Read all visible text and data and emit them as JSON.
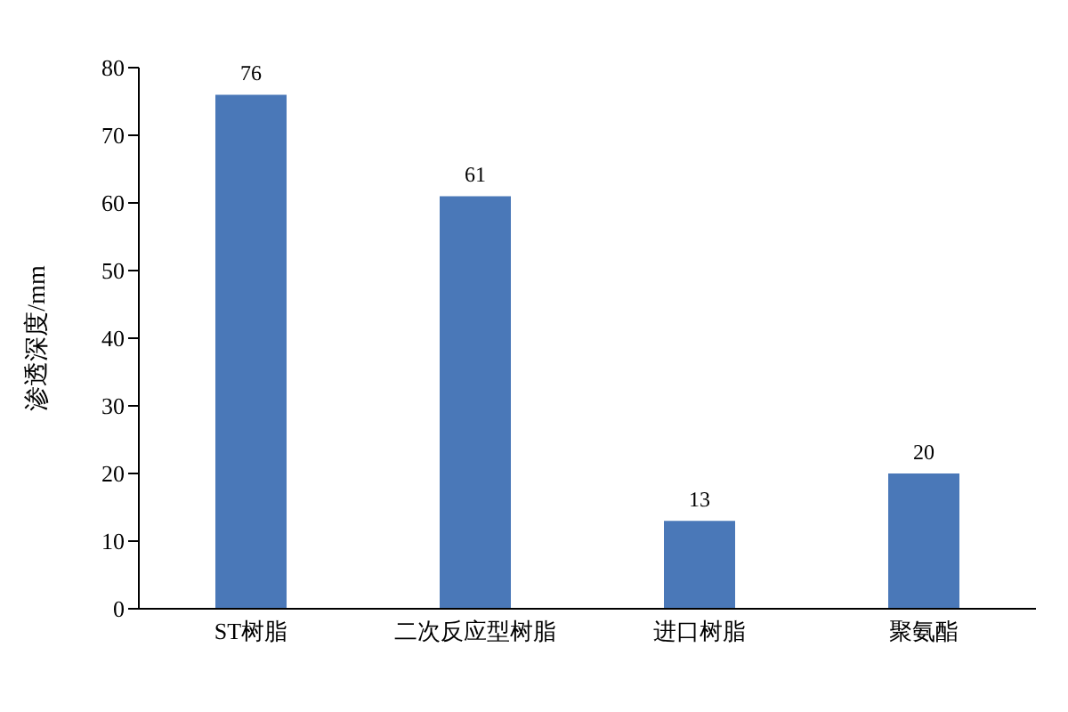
{
  "chart_data": {
    "type": "bar",
    "ylabel": "渗透深度/mm",
    "categories": [
      "ST树脂",
      "二次反应型树脂",
      "进口树脂",
      "聚氨酯"
    ],
    "values": [
      76,
      61,
      13,
      20
    ],
    "color": "#4a78b8",
    "ylim": [
      0,
      80
    ],
    "yticks": [
      0,
      10,
      20,
      30,
      40,
      50,
      60,
      70,
      80
    ],
    "grid": false,
    "data_labels": true,
    "legend": false
  }
}
